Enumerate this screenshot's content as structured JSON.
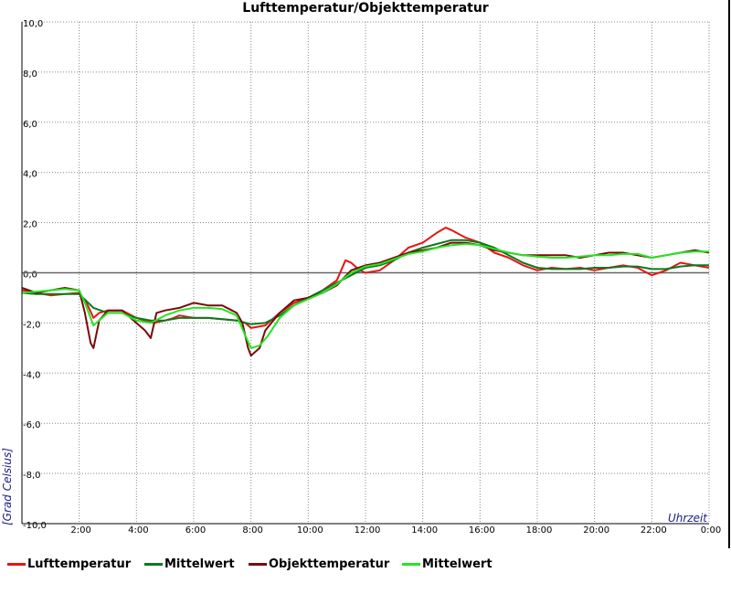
{
  "chart_data": {
    "type": "line",
    "title": "Lufttemperatur/Objekttemperatur",
    "xlabel": "Uhrzeit",
    "ylabel": "[Grad Celsius]",
    "xlim": [
      0,
      24
    ],
    "ylim": [
      -10,
      10
    ],
    "x_tick_labels": [
      "2:00",
      "4:00",
      "6:00",
      "8:00",
      "10:00",
      "12:00",
      "14:00",
      "16:00",
      "18:00",
      "20:00",
      "22:00",
      "0:00"
    ],
    "y_tick_labels": [
      "10,0",
      "8,0",
      "6,0",
      "4,0",
      "2,0",
      "0,0",
      "-2,0",
      "-4,0",
      "-6,0",
      "-8,0",
      "-10,0"
    ],
    "grid": true,
    "legend_position": "bottom",
    "series": [
      {
        "name": "Lufttemperatur",
        "color": "#e81414",
        "x": [
          0,
          0.5,
          1,
          1.5,
          2,
          2.3,
          2.5,
          2.7,
          3,
          3.5,
          4,
          4.3,
          4.6,
          5,
          5.3,
          5.5,
          6,
          6.5,
          7,
          7.5,
          7.8,
          8,
          8.5,
          9,
          9.5,
          10,
          10.5,
          11,
          11.3,
          11.5,
          11.8,
          12,
          12.5,
          13,
          13.5,
          14,
          14.5,
          14.8,
          15,
          15.5,
          16,
          16.5,
          17,
          17.5,
          18,
          18.5,
          19,
          19.5,
          20,
          20.5,
          21,
          21.5,
          22,
          22.5,
          23,
          23.5,
          24
        ],
        "y": [
          -0.7,
          -0.8,
          -0.9,
          -0.85,
          -0.8,
          -1.3,
          -1.8,
          -1.6,
          -1.5,
          -1.5,
          -1.8,
          -1.9,
          -2.0,
          -1.9,
          -1.8,
          -1.7,
          -1.8,
          -1.8,
          -1.85,
          -1.9,
          -2.0,
          -2.2,
          -2.1,
          -1.6,
          -1.2,
          -1.0,
          -0.7,
          -0.3,
          0.5,
          0.4,
          0.1,
          0.0,
          0.1,
          0.5,
          1.0,
          1.2,
          1.6,
          1.8,
          1.7,
          1.4,
          1.2,
          0.8,
          0.6,
          0.3,
          0.1,
          0.2,
          0.15,
          0.2,
          0.1,
          0.2,
          0.3,
          0.2,
          -0.1,
          0.1,
          0.4,
          0.3,
          0.2
        ]
      },
      {
        "name": "Mittelwert",
        "color": "#0a7a1e",
        "x": [
          0,
          0.5,
          1,
          1.5,
          2,
          2.5,
          3,
          3.5,
          4,
          4.5,
          5,
          5.5,
          6,
          6.5,
          7,
          7.5,
          8,
          8.5,
          9,
          9.5,
          10,
          10.5,
          11,
          11.5,
          12,
          12.5,
          13,
          13.5,
          14,
          14.5,
          15,
          15.5,
          16,
          16.5,
          17,
          17.5,
          18,
          18.5,
          19,
          19.5,
          20,
          20.5,
          21,
          21.5,
          22,
          22.5,
          23,
          23.5,
          24
        ],
        "y": [
          -0.8,
          -0.85,
          -0.85,
          -0.85,
          -0.85,
          -1.4,
          -1.6,
          -1.6,
          -1.8,
          -1.9,
          -1.9,
          -1.8,
          -1.8,
          -1.8,
          -1.85,
          -1.9,
          -2.05,
          -2.0,
          -1.7,
          -1.3,
          -1.0,
          -0.7,
          -0.4,
          -0.1,
          0.2,
          0.3,
          0.5,
          0.8,
          1.0,
          1.15,
          1.3,
          1.3,
          1.2,
          1.0,
          0.7,
          0.4,
          0.2,
          0.15,
          0.15,
          0.15,
          0.2,
          0.2,
          0.25,
          0.25,
          0.15,
          0.15,
          0.25,
          0.3,
          0.3
        ]
      },
      {
        "name": "Objekttemperatur",
        "color": "#7a0a0a",
        "x": [
          0,
          0.5,
          1,
          1.5,
          2,
          2.2,
          2.4,
          2.5,
          2.7,
          3,
          3.5,
          4,
          4.3,
          4.5,
          4.7,
          5,
          5.5,
          6,
          6.5,
          7,
          7.5,
          7.7,
          7.9,
          8,
          8.3,
          8.5,
          9,
          9.5,
          10,
          10.5,
          11,
          11.5,
          12,
          12.5,
          13,
          13.5,
          14,
          14.5,
          15,
          15.5,
          16,
          16.5,
          17,
          17.5,
          18,
          18.5,
          19,
          19.5,
          20,
          20.5,
          21,
          21.5,
          22,
          22.5,
          23,
          23.5,
          24
        ],
        "y": [
          -0.6,
          -0.8,
          -0.7,
          -0.6,
          -0.7,
          -1.6,
          -2.8,
          -3.0,
          -1.9,
          -1.5,
          -1.5,
          -2.0,
          -2.3,
          -2.6,
          -1.6,
          -1.5,
          -1.4,
          -1.2,
          -1.3,
          -1.3,
          -1.6,
          -2.0,
          -3.0,
          -3.3,
          -3.0,
          -2.3,
          -1.6,
          -1.1,
          -1.0,
          -0.8,
          -0.5,
          0.1,
          0.3,
          0.4,
          0.6,
          0.8,
          0.9,
          1.0,
          1.2,
          1.2,
          1.1,
          0.9,
          0.8,
          0.7,
          0.7,
          0.7,
          0.7,
          0.6,
          0.7,
          0.8,
          0.8,
          0.7,
          0.6,
          0.7,
          0.8,
          0.9,
          0.8
        ]
      },
      {
        "name": "Mittelwert",
        "color": "#22e622",
        "x": [
          0,
          0.5,
          1,
          1.5,
          2,
          2.2,
          2.5,
          2.8,
          3,
          3.5,
          4,
          4.5,
          5,
          5.5,
          6,
          6.5,
          7,
          7.5,
          7.8,
          8,
          8.3,
          8.6,
          9,
          9.5,
          10,
          10.5,
          11,
          11.5,
          12,
          12.5,
          13,
          13.5,
          14,
          14.5,
          15,
          15.5,
          16,
          16.5,
          17,
          17.5,
          18,
          18.5,
          19,
          19.5,
          20,
          20.5,
          21,
          21.5,
          22,
          22.5,
          23,
          23.5,
          24
        ],
        "y": [
          -0.8,
          -0.75,
          -0.7,
          -0.65,
          -0.7,
          -1.2,
          -2.1,
          -1.8,
          -1.6,
          -1.6,
          -1.9,
          -2.0,
          -1.7,
          -1.5,
          -1.4,
          -1.4,
          -1.45,
          -1.7,
          -2.5,
          -3.0,
          -2.9,
          -2.5,
          -1.8,
          -1.3,
          -1.05,
          -0.8,
          -0.45,
          0.0,
          0.25,
          0.35,
          0.55,
          0.75,
          0.85,
          1.0,
          1.1,
          1.15,
          1.1,
          0.95,
          0.8,
          0.7,
          0.65,
          0.6,
          0.6,
          0.65,
          0.7,
          0.7,
          0.75,
          0.75,
          0.6,
          0.7,
          0.8,
          0.85,
          0.85
        ]
      }
    ]
  }
}
